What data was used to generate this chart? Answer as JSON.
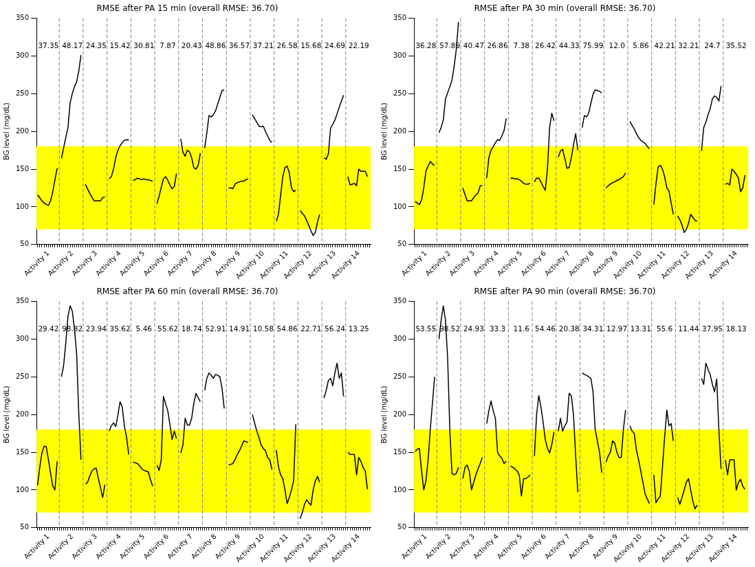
{
  "chart_data": [
    {
      "type": "line",
      "title": "RMSE after PA 15 min (overall RMSE: 36.70)",
      "ylabel": "BG level (mg/dL)",
      "grid": false,
      "legend": false,
      "line_style": "solid",
      "categories": [
        null,
        null,
        null,
        null,
        null,
        "Activity 1",
        null,
        null,
        null,
        null,
        null,
        null,
        null,
        null,
        null,
        null,
        "Activity 2",
        null,
        null,
        null,
        null,
        null,
        null,
        null,
        null,
        null,
        null,
        "Activity 3",
        null,
        null,
        null,
        null,
        null,
        null,
        null,
        null,
        null,
        null,
        "Activity 4",
        null,
        null,
        null,
        null,
        null,
        null,
        null,
        null,
        null,
        null,
        "Activity 5",
        null,
        null,
        null,
        null,
        null,
        null,
        null,
        null,
        null,
        null,
        "Activity 6",
        null,
        null,
        null,
        null,
        null,
        null,
        null,
        null,
        null,
        null,
        "Activity 7",
        null,
        null,
        null,
        null,
        null,
        null,
        null,
        null,
        null,
        null,
        "Activity 8",
        null,
        null,
        null,
        null,
        null,
        null,
        null,
        null,
        null,
        null,
        "Activity 9",
        null,
        null,
        null,
        null,
        null,
        null,
        null,
        null,
        null,
        null,
        "Activity 10",
        null,
        null,
        null,
        null,
        null,
        null,
        null,
        null,
        null,
        null,
        "Activity 11",
        null,
        null,
        null,
        null,
        null,
        null,
        null,
        null,
        null,
        null,
        "Activity 12",
        null,
        null,
        null,
        null,
        null,
        null,
        null,
        null,
        null,
        null,
        "Activity 13",
        null,
        null,
        null,
        null,
        null,
        null,
        null,
        null,
        null,
        null,
        "Activity 14",
        null,
        null,
        null,
        null,
        null
      ],
      "ylim": [
        50,
        350
      ],
      "yticks": [
        50,
        100,
        150,
        200,
        250,
        300,
        350
      ],
      "bands": [
        {
          "axis": "y",
          "from": 70,
          "to": 180,
          "color": "#ffff00"
        }
      ],
      "annotations": [
        "37.35",
        "48.17",
        "24.35",
        "15.42",
        "30.81",
        "7.87",
        "20.43",
        "48.86",
        "36.57",
        "37.21",
        "26.58",
        "15.68",
        "24.69",
        "22.19"
      ],
      "series": [
        {
          "color": "#000000",
          "values": [
            116,
            112,
            108,
            105,
            103,
            102,
            108,
            120,
            136,
            151,
            null,
            164,
            178,
            192,
            205,
            238,
            250,
            259,
            266,
            280,
            301,
            null,
            130,
            124,
            118,
            113,
            108,
            108,
            108,
            108,
            112,
            113,
            null,
            137,
            140,
            150,
            165,
            175,
            181,
            185,
            188,
            189,
            188,
            null,
            135,
            136,
            138,
            137,
            136,
            137,
            136,
            136,
            135,
            134,
            null,
            104,
            114,
            126,
            137,
            140,
            135,
            129,
            124,
            127,
            144,
            null,
            190,
            172,
            167,
            175,
            173,
            165,
            152,
            150,
            155,
            171,
            null,
            178,
            198,
            221,
            219,
            222,
            227,
            236,
            245,
            254,
            255,
            null,
            125,
            125,
            124,
            130,
            132,
            133,
            134,
            134,
            136,
            137,
            null,
            222,
            217,
            212,
            207,
            206,
            207,
            200,
            194,
            188,
            185,
            null,
            81,
            90,
            115,
            140,
            152,
            154,
            145,
            125,
            120,
            122,
            null,
            95,
            91,
            88,
            82,
            75,
            68,
            62,
            66,
            80,
            90,
            null,
            165,
            163,
            170,
            204,
            209,
            215,
            223,
            232,
            240,
            248,
            null,
            140,
            129,
            130,
            131,
            128,
            150,
            147,
            147,
            147,
            140,
            null
          ]
        }
      ]
    },
    {
      "type": "line",
      "title": "RMSE after PA 30 min (overall RMSE: 36.70)",
      "ylabel": "BG level (mg/dL)",
      "grid": false,
      "legend": false,
      "line_style": "solid",
      "categories": [
        null,
        null,
        null,
        null,
        null,
        "Activity 1",
        null,
        null,
        null,
        null,
        null,
        null,
        null,
        null,
        null,
        null,
        "Activity 2",
        null,
        null,
        null,
        null,
        null,
        null,
        null,
        null,
        null,
        null,
        "Activity 3",
        null,
        null,
        null,
        null,
        null,
        null,
        null,
        null,
        null,
        null,
        "Activity 4",
        null,
        null,
        null,
        null,
        null,
        null,
        null,
        null,
        null,
        null,
        "Activity 5",
        null,
        null,
        null,
        null,
        null,
        null,
        null,
        null,
        null,
        null,
        "Activity 6",
        null,
        null,
        null,
        null,
        null,
        null,
        null,
        null,
        null,
        null,
        "Activity 7",
        null,
        null,
        null,
        null,
        null,
        null,
        null,
        null,
        null,
        null,
        "Activity 8",
        null,
        null,
        null,
        null,
        null,
        null,
        null,
        null,
        null,
        null,
        "Activity 9",
        null,
        null,
        null,
        null,
        null,
        null,
        null,
        null,
        null,
        null,
        "Activity 10",
        null,
        null,
        null,
        null,
        null,
        null,
        null,
        null,
        null,
        null,
        "Activity 11",
        null,
        null,
        null,
        null,
        null,
        null,
        null,
        null,
        null,
        null,
        "Activity 12",
        null,
        null,
        null,
        null,
        null,
        null,
        null,
        null,
        null,
        null,
        "Activity 13",
        null,
        null,
        null,
        null,
        null,
        null,
        null,
        null,
        null,
        null,
        "Activity 14",
        null,
        null,
        null,
        null,
        null
      ],
      "ylim": [
        50,
        350
      ],
      "yticks": [
        50,
        100,
        150,
        200,
        250,
        300,
        350
      ],
      "bands": [
        {
          "axis": "y",
          "from": 70,
          "to": 180,
          "color": "#ffff00"
        }
      ],
      "annotations": [
        "36.28",
        "57.89",
        "40.47",
        "26.86",
        "7.38",
        "26.42",
        "44.33",
        "75.99",
        "12.0",
        "5.86",
        "42.21",
        "32.21",
        "24.7",
        "35.52"
      ],
      "series": [
        {
          "color": "#000000",
          "values": [
            107,
            105,
            103,
            109,
            125,
            147,
            154,
            160,
            157,
            155,
            null,
            198,
            205,
            215,
            243,
            251,
            259,
            268,
            286,
            309,
            345,
            null,
            125,
            116,
            108,
            108,
            108,
            112,
            116,
            118,
            128,
            128,
            null,
            138,
            165,
            175,
            180,
            185,
            189,
            188,
            194,
            201,
            217,
            null,
            138,
            138,
            137,
            137,
            136,
            134,
            131,
            130,
            130,
            131,
            null,
            133,
            138,
            138,
            133,
            127,
            122,
            150,
            205,
            224,
            214,
            null,
            166,
            174,
            176,
            164,
            151,
            152,
            165,
            182,
            197,
            175,
            null,
            205,
            221,
            219,
            224,
            237,
            249,
            255,
            254,
            253,
            251,
            null,
            125,
            128,
            130,
            132,
            133,
            135,
            136,
            138,
            140,
            145,
            null,
            213,
            208,
            203,
            197,
            192,
            188,
            186,
            184,
            180,
            177,
            null,
            103,
            130,
            153,
            155,
            150,
            140,
            125,
            121,
            105,
            90,
            null,
            88,
            83,
            76,
            66,
            70,
            78,
            90,
            86,
            82,
            81,
            null,
            174,
            205,
            212,
            222,
            230,
            243,
            247,
            245,
            240,
            260,
            null,
            130,
            131,
            129,
            150,
            147,
            143,
            138,
            120,
            125,
            142,
            null
          ]
        }
      ]
    },
    {
      "type": "line",
      "title": "RMSE after PA 60 min (overall RMSE: 36.70)",
      "ylabel": "BG level (mg/dL)",
      "grid": false,
      "legend": false,
      "line_style": "solid",
      "categories": [
        null,
        null,
        null,
        null,
        null,
        "Activity 1",
        null,
        null,
        null,
        null,
        null,
        null,
        null,
        null,
        null,
        null,
        "Activity 2",
        null,
        null,
        null,
        null,
        null,
        null,
        null,
        null,
        null,
        null,
        "Activity 3",
        null,
        null,
        null,
        null,
        null,
        null,
        null,
        null,
        null,
        null,
        "Activity 4",
        null,
        null,
        null,
        null,
        null,
        null,
        null,
        null,
        null,
        null,
        "Activity 5",
        null,
        null,
        null,
        null,
        null,
        null,
        null,
        null,
        null,
        null,
        "Activity 6",
        null,
        null,
        null,
        null,
        null,
        null,
        null,
        null,
        null,
        null,
        "Activity 7",
        null,
        null,
        null,
        null,
        null,
        null,
        null,
        null,
        null,
        null,
        "Activity 8",
        null,
        null,
        null,
        null,
        null,
        null,
        null,
        null,
        null,
        null,
        "Activity 9",
        null,
        null,
        null,
        null,
        null,
        null,
        null,
        null,
        null,
        null,
        "Activity 10",
        null,
        null,
        null,
        null,
        null,
        null,
        null,
        null,
        null,
        null,
        "Activity 11",
        null,
        null,
        null,
        null,
        null,
        null,
        null,
        null,
        null,
        null,
        "Activity 12",
        null,
        null,
        null,
        null,
        null,
        null,
        null,
        null,
        null,
        null,
        "Activity 13",
        null,
        null,
        null,
        null,
        null,
        null,
        null,
        null,
        null,
        null,
        "Activity 14",
        null,
        null,
        null,
        null,
        null
      ],
      "ylim": [
        50,
        350
      ],
      "yticks": [
        50,
        100,
        150,
        200,
        250,
        300,
        350
      ],
      "bands": [
        {
          "axis": "y",
          "from": 70,
          "to": 180,
          "color": "#ffff00"
        }
      ],
      "annotations": [
        "29.42",
        "98.82",
        "23.94",
        "35.62",
        "5.46",
        "55.62",
        "18.74",
        "52.91",
        "14.91",
        "10.58",
        "54.86",
        "22.71",
        "56.24",
        "13.25"
      ],
      "series": [
        {
          "color": "#000000",
          "values": [
            106,
            130,
            149,
            158,
            157,
            140,
            122,
            105,
            100,
            138,
            null,
            250,
            265,
            295,
            330,
            344,
            337,
            313,
            280,
            200,
            140,
            null,
            108,
            110,
            118,
            125,
            128,
            129,
            115,
            103,
            90,
            107,
            null,
            178,
            185,
            189,
            184,
            199,
            217,
            210,
            185,
            170,
            147,
            null,
            137,
            136,
            135,
            132,
            128,
            126,
            125,
            124,
            114,
            105,
            null,
            133,
            126,
            140,
            224,
            214,
            205,
            186,
            167,
            178,
            168,
            null,
            149,
            160,
            195,
            186,
            186,
            195,
            215,
            228,
            222,
            217,
            null,
            232,
            248,
            255,
            252,
            248,
            253,
            252,
            250,
            235,
            208,
            null,
            133,
            134,
            135,
            140,
            147,
            152,
            158,
            165,
            164,
            163,
            null,
            200,
            189,
            178,
            170,
            160,
            155,
            152,
            143,
            140,
            127,
            null,
            153,
            131,
            120,
            115,
            100,
            82,
            90,
            100,
            112,
            187,
            null,
            62,
            70,
            81,
            87,
            83,
            80,
            100,
            112,
            118,
            110,
            null,
            222,
            232,
            245,
            248,
            238,
            255,
            268,
            248,
            255,
            224,
            null,
            150,
            147,
            147,
            147,
            120,
            143,
            138,
            130,
            125,
            101,
            null
          ]
        }
      ]
    },
    {
      "type": "line",
      "title": "RMSE after PA 90 min (overall RMSE: 36.70)",
      "ylabel": "BG level (mg/dL)",
      "grid": false,
      "legend": false,
      "line_style": "solid",
      "categories": [
        null,
        null,
        null,
        null,
        null,
        "Activity 1",
        null,
        null,
        null,
        null,
        null,
        null,
        null,
        null,
        null,
        null,
        "Activity 2",
        null,
        null,
        null,
        null,
        null,
        null,
        null,
        null,
        null,
        null,
        "Activity 3",
        null,
        null,
        null,
        null,
        null,
        null,
        null,
        null,
        null,
        null,
        "Activity 4",
        null,
        null,
        null,
        null,
        null,
        null,
        null,
        null,
        null,
        null,
        "Activity 5",
        null,
        null,
        null,
        null,
        null,
        null,
        null,
        null,
        null,
        null,
        "Activity 6",
        null,
        null,
        null,
        null,
        null,
        null,
        null,
        null,
        null,
        null,
        "Activity 7",
        null,
        null,
        null,
        null,
        null,
        null,
        null,
        null,
        null,
        null,
        "Activity 8",
        null,
        null,
        null,
        null,
        null,
        null,
        null,
        null,
        null,
        null,
        "Activity 9",
        null,
        null,
        null,
        null,
        null,
        null,
        null,
        null,
        null,
        null,
        "Activity 10",
        null,
        null,
        null,
        null,
        null,
        null,
        null,
        null,
        null,
        null,
        "Activity 11",
        null,
        null,
        null,
        null,
        null,
        null,
        null,
        null,
        null,
        null,
        "Activity 12",
        null,
        null,
        null,
        null,
        null,
        null,
        null,
        null,
        null,
        null,
        "Activity 13",
        null,
        null,
        null,
        null,
        null,
        null,
        null,
        null,
        null,
        null,
        "Activity 14",
        null,
        null,
        null,
        null,
        null
      ],
      "ylim": [
        50,
        350
      ],
      "yticks": [
        50,
        100,
        150,
        200,
        250,
        300,
        350
      ],
      "bands": [
        {
          "axis": "y",
          "from": 70,
          "to": 180,
          "color": "#ffff00"
        }
      ],
      "annotations": [
        "53.55",
        "98.52",
        "24.93",
        "33.3",
        "11.6",
        "54.46",
        "20.38",
        "34.31",
        "12.97",
        "13.31",
        "55.6",
        "11.44",
        "37.95",
        "18.13"
      ],
      "series": [
        {
          "color": "#000000",
          "values": [
            151,
            154,
            155,
            125,
            100,
            112,
            140,
            180,
            215,
            250,
            null,
            300,
            325,
            344,
            325,
            275,
            180,
            122,
            120,
            122,
            130,
            null,
            115,
            130,
            133,
            125,
            100,
            110,
            120,
            128,
            135,
            143,
            null,
            188,
            205,
            218,
            205,
            195,
            150,
            145,
            142,
            135,
            138,
            null,
            132,
            130,
            128,
            125,
            120,
            92,
            115,
            115,
            117,
            120,
            null,
            145,
            200,
            225,
            210,
            190,
            167,
            155,
            149,
            160,
            177,
            null,
            178,
            195,
            178,
            185,
            190,
            228,
            225,
            200,
            145,
            97,
            null,
            255,
            253,
            252,
            250,
            248,
            230,
            180,
            165,
            150,
            123,
            null,
            137,
            145,
            150,
            165,
            162,
            150,
            143,
            143,
            180,
            206,
            null,
            185,
            178,
            175,
            153,
            140,
            125,
            110,
            95,
            88,
            82,
            null,
            120,
            83,
            88,
            92,
            130,
            170,
            206,
            185,
            188,
            165,
            null,
            90,
            81,
            90,
            100,
            110,
            115,
            100,
            85,
            75,
            80,
            null,
            248,
            240,
            268,
            260,
            253,
            240,
            230,
            247,
            180,
            128,
            null,
            140,
            120,
            140,
            140,
            140,
            100,
            110,
            114,
            105,
            101,
            null
          ]
        }
      ]
    }
  ]
}
